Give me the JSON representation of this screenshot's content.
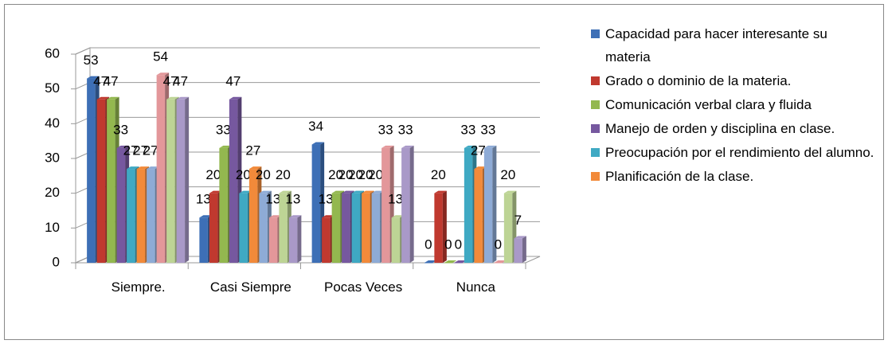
{
  "chart_data": {
    "type": "bar3d",
    "categories": [
      "Siempre.",
      "Casi Siempre",
      "Pocas Veces",
      "Nunca"
    ],
    "series": [
      {
        "name": "Capacidad para hacer interesante su materia",
        "color": "#3d6fb6",
        "values": [
          53,
          13,
          34,
          0
        ]
      },
      {
        "name": "Grado o dominio de la materia.",
        "color": "#c0392f",
        "values": [
          47,
          20,
          13,
          20
        ]
      },
      {
        "name": "Comunicación verbal clara y fluida",
        "color": "#93b84f",
        "values": [
          47,
          33,
          20,
          0
        ]
      },
      {
        "name": "Manejo de orden y disciplina en clase.",
        "color": "#76589f",
        "values": [
          33,
          47,
          20,
          0
        ]
      },
      {
        "name": "Preocupación por el rendimiento del alumno.",
        "color": "#3fa9c3",
        "values": [
          27,
          20,
          20,
          33
        ]
      },
      {
        "name": "Planificación de la clase.",
        "color": "#f28a3a",
        "values": [
          27,
          27,
          20,
          27
        ]
      },
      {
        "color": "#8eabd6",
        "values": [
          27,
          20,
          20,
          33
        ]
      },
      {
        "color": "#e3979a",
        "values": [
          54,
          13,
          33,
          0
        ]
      },
      {
        "color": "#bdd495",
        "values": [
          47,
          20,
          13,
          20
        ]
      },
      {
        "color": "#a999c8",
        "values": [
          47,
          13,
          33,
          7
        ]
      }
    ],
    "ylim": [
      0,
      60
    ],
    "yticks": [
      0,
      10,
      20,
      30,
      40,
      50,
      60
    ],
    "grid": true,
    "legend": "right"
  }
}
